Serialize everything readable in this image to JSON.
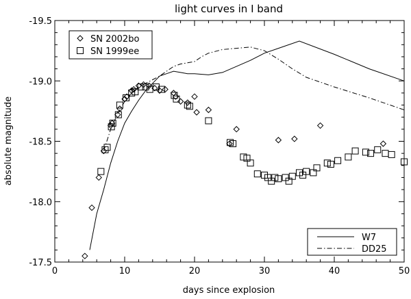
{
  "chart_data": {
    "type": "scatter",
    "title": "light curves in I band",
    "xlabel": "days since explosion",
    "ylabel": "absolute magnitude",
    "xlim": [
      0,
      50
    ],
    "ylim": [
      -17.5,
      -19.5
    ],
    "y_inverted": true,
    "x_ticks": [
      0,
      10,
      20,
      30,
      40,
      50
    ],
    "y_ticks": [
      -17.5,
      -18.0,
      -18.5,
      -19.0,
      -19.5
    ],
    "x_tick_labels": [
      "0",
      "10",
      "20",
      "30",
      "40",
      "50"
    ],
    "y_tick_labels": [
      "-17.5",
      "-18.0",
      "-18.5",
      "-19.0",
      "-19.5"
    ],
    "grid": false,
    "series": [
      {
        "name": "SN 2002bo",
        "kind": "points",
        "marker": "diamond",
        "x": [
          4.3,
          5.3,
          6.3,
          7.0,
          8.0,
          8.2,
          9.0,
          9.3,
          10.0,
          10.3,
          11.0,
          11.3,
          12.0,
          12.7,
          13.5,
          14.3,
          15.0,
          15.8,
          17.0,
          17.3,
          18.0,
          19.0,
          20.0,
          20.3,
          22.0,
          25.0,
          26.0,
          32.0,
          34.3,
          38.0,
          47.0
        ],
        "y": [
          -17.55,
          -17.95,
          -18.2,
          -18.42,
          -18.63,
          -18.65,
          -18.72,
          -18.77,
          -18.85,
          -18.87,
          -18.92,
          -18.93,
          -18.96,
          -18.97,
          -18.96,
          -18.94,
          -18.92,
          -18.93,
          -18.9,
          -18.87,
          -18.83,
          -18.82,
          -18.87,
          -18.74,
          -18.76,
          -18.48,
          -18.6,
          -18.51,
          -18.52,
          -18.63,
          -18.48
        ]
      },
      {
        "name": "SN 1999ee",
        "kind": "points",
        "marker": "square",
        "x": [
          6.6,
          7.2,
          7.5,
          8.1,
          8.3,
          9.1,
          9.3,
          10.2,
          11.0,
          11.5,
          12.3,
          13.0,
          13.6,
          14.5,
          15.3,
          17.1,
          17.4,
          19.0,
          19.3,
          22.0,
          25.1,
          25.5,
          27.0,
          27.5,
          28.0,
          29.0,
          30.0,
          30.5,
          31.0,
          31.5,
          32.0,
          33.0,
          33.5,
          34.0,
          35.0,
          35.5,
          36.0,
          37.0,
          37.5,
          39.0,
          39.5,
          40.5,
          42.0,
          43.0,
          44.5,
          45.2,
          46.2,
          47.3,
          48.2,
          50.0
        ],
        "y": [
          -18.25,
          -18.43,
          -18.45,
          -18.62,
          -18.65,
          -18.72,
          -18.8,
          -18.86,
          -18.9,
          -18.91,
          -18.95,
          -18.95,
          -18.93,
          -18.95,
          -18.93,
          -18.88,
          -18.85,
          -18.8,
          -18.79,
          -18.67,
          -18.49,
          -18.48,
          -18.37,
          -18.36,
          -18.32,
          -18.23,
          -18.22,
          -18.2,
          -18.17,
          -18.2,
          -18.19,
          -18.2,
          -18.17,
          -18.21,
          -18.24,
          -18.22,
          -18.25,
          -18.24,
          -18.28,
          -18.32,
          -18.31,
          -18.34,
          -18.37,
          -18.42,
          -18.41,
          -18.4,
          -18.43,
          -18.4,
          -18.39,
          -18.33
        ]
      },
      {
        "name": "W7",
        "kind": "line",
        "dash": "solid",
        "x": [
          5,
          6,
          7,
          8,
          9,
          10,
          11,
          12,
          13,
          14,
          15,
          16,
          17,
          18,
          19,
          20,
          22,
          24,
          26,
          28,
          30,
          32,
          35,
          40,
          45,
          50
        ],
        "y": [
          -17.6,
          -17.9,
          -18.1,
          -18.32,
          -18.5,
          -18.65,
          -18.75,
          -18.84,
          -18.92,
          -18.98,
          -19.04,
          -19.06,
          -19.08,
          -19.07,
          -19.06,
          -19.06,
          -19.05,
          -19.07,
          -19.12,
          -19.17,
          -19.23,
          -19.27,
          -19.33,
          -19.22,
          -19.1,
          -19.0
        ]
      },
      {
        "name": "DD25",
        "kind": "line",
        "dash": "dashdot",
        "x": [
          7,
          8,
          9,
          10,
          11,
          12,
          13,
          14,
          15,
          16,
          17,
          18,
          19,
          20,
          21,
          22,
          24,
          26,
          28,
          30,
          32,
          34,
          36,
          40,
          45,
          50
        ],
        "y": [
          -18.42,
          -18.6,
          -18.73,
          -18.83,
          -18.9,
          -18.95,
          -18.98,
          -19.01,
          -19.04,
          -19.08,
          -19.12,
          -19.14,
          -19.15,
          -19.16,
          -19.2,
          -19.23,
          -19.26,
          -19.27,
          -19.28,
          -19.25,
          -19.18,
          -19.1,
          -19.03,
          -18.95,
          -18.86,
          -18.76
        ]
      }
    ],
    "legends": [
      {
        "position": "top-left",
        "entries": [
          "SN 2002bo",
          "SN 1999ee"
        ]
      },
      {
        "position": "bottom-right",
        "entries": [
          "W7",
          "DD25"
        ]
      }
    ]
  }
}
